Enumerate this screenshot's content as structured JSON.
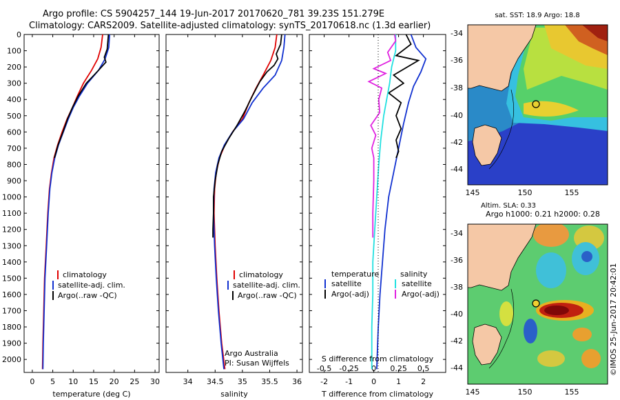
{
  "header": {
    "line1": "Argo profile: CS 5904257_144 19-Jun-2017 20170620_781 39.23S 151.279E",
    "line2": "Climatology: CARS2009. Satellite-adjusted climatology: synTS_20170618.nc (1.3d earlier)"
  },
  "colors": {
    "climatology": "#e00000",
    "satellite": "#1030d0",
    "argo": "#000000",
    "sat_s": "#20e0e0",
    "argo_s": "#e020e0"
  },
  "chart_data": [
    {
      "type": "line",
      "id": "temperature",
      "xlabel": "temperature (deg C)",
      "ylabel": "",
      "xlim": [
        -2,
        31
      ],
      "ylim": [
        2080,
        0
      ],
      "xticks": [
        0,
        5,
        10,
        15,
        20,
        25,
        30
      ],
      "yticks": [
        0,
        100,
        200,
        300,
        400,
        500,
        600,
        700,
        800,
        900,
        1000,
        1100,
        1200,
        1300,
        1400,
        1500,
        1600,
        1700,
        1800,
        1900,
        2000
      ],
      "legend": [
        "climatology",
        "satellite-adj. clim.",
        "Argo(..raw -QC)"
      ],
      "series": [
        {
          "name": "climatology",
          "points": [
            [
              17.2,
              0
            ],
            [
              16.8,
              80
            ],
            [
              16.0,
              150
            ],
            [
              14.5,
              220
            ],
            [
              12.5,
              300
            ],
            [
              11.0,
              380
            ],
            [
              9.8,
              450
            ],
            [
              8.5,
              520
            ],
            [
              7.3,
              600
            ],
            [
              6.2,
              680
            ],
            [
              5.3,
              760
            ],
            [
              4.7,
              850
            ],
            [
              4.2,
              950
            ],
            [
              3.8,
              1100
            ],
            [
              3.4,
              1300
            ],
            [
              3.0,
              1500
            ],
            [
              2.8,
              1700
            ],
            [
              2.6,
              1900
            ],
            [
              2.5,
              2060
            ]
          ]
        },
        {
          "name": "satellite-adj. clim.",
          "points": [
            [
              18.9,
              0
            ],
            [
              18.7,
              80
            ],
            [
              17.8,
              150
            ],
            [
              16.2,
              220
            ],
            [
              13.5,
              300
            ],
            [
              11.5,
              380
            ],
            [
              10.0,
              450
            ],
            [
              8.8,
              520
            ],
            [
              7.6,
              600
            ],
            [
              6.4,
              680
            ],
            [
              5.5,
              760
            ],
            [
              4.8,
              850
            ],
            [
              4.3,
              950
            ],
            [
              3.9,
              1100
            ],
            [
              3.5,
              1300
            ],
            [
              3.1,
              1500
            ],
            [
              2.9,
              1700
            ],
            [
              2.7,
              1900
            ],
            [
              2.6,
              2060
            ]
          ]
        },
        {
          "name": "Argo(..raw -QC)",
          "points": [
            [
              18.6,
              0
            ],
            [
              18.3,
              90
            ],
            [
              17.6,
              140
            ],
            [
              18.0,
              170
            ],
            [
              16.2,
              220
            ],
            [
              13.2,
              300
            ],
            [
              11.2,
              380
            ],
            [
              9.8,
              450
            ],
            [
              8.6,
              520
            ],
            [
              7.5,
              600
            ],
            [
              6.3,
              680
            ],
            [
              5.4,
              760
            ]
          ]
        }
      ]
    },
    {
      "type": "line",
      "id": "salinity",
      "xlabel": "salinity",
      "xlim": [
        33.6,
        36.1
      ],
      "ylim": [
        2080,
        0
      ],
      "xticks": [
        34,
        34.5,
        35,
        35.5,
        36
      ],
      "legend": [
        "climatology",
        "satellite-adj. clim.",
        "Argo(..raw -QC)"
      ],
      "annotation": [
        "Argo Australia",
        "PI: Susan Wijffels"
      ],
      "series": [
        {
          "name": "climatology",
          "points": [
            [
              35.63,
              0
            ],
            [
              35.6,
              80
            ],
            [
              35.52,
              160
            ],
            [
              35.38,
              250
            ],
            [
              35.25,
              330
            ],
            [
              35.12,
              420
            ],
            [
              35.0,
              520
            ],
            [
              34.82,
              600
            ],
            [
              34.68,
              680
            ],
            [
              34.58,
              760
            ],
            [
              34.52,
              850
            ],
            [
              34.49,
              950
            ],
            [
              34.48,
              1100
            ],
            [
              34.5,
              1300
            ],
            [
              34.53,
              1500
            ],
            [
              34.57,
              1700
            ],
            [
              34.62,
              1900
            ],
            [
              34.68,
              2060
            ]
          ]
        },
        {
          "name": "satellite-adj. clim.",
          "points": [
            [
              35.78,
              0
            ],
            [
              35.76,
              80
            ],
            [
              35.72,
              160
            ],
            [
              35.6,
              250
            ],
            [
              35.38,
              330
            ],
            [
              35.18,
              420
            ],
            [
              35.02,
              520
            ],
            [
              34.82,
              600
            ],
            [
              34.67,
              680
            ],
            [
              34.57,
              760
            ],
            [
              34.51,
              850
            ],
            [
              34.48,
              950
            ],
            [
              34.47,
              1100
            ],
            [
              34.49,
              1300
            ],
            [
              34.52,
              1500
            ],
            [
              34.56,
              1700
            ],
            [
              34.61,
              1900
            ],
            [
              34.66,
              2060
            ]
          ]
        },
        {
          "name": "Argo(..raw -QC)",
          "points": [
            [
              35.72,
              0
            ],
            [
              35.7,
              60
            ],
            [
              35.62,
              120
            ],
            [
              35.65,
              150
            ],
            [
              35.58,
              190
            ],
            [
              35.45,
              230
            ],
            [
              35.32,
              290
            ],
            [
              35.18,
              380
            ],
            [
              35.05,
              470
            ],
            [
              34.9,
              560
            ],
            [
              34.75,
              640
            ],
            [
              34.62,
              720
            ],
            [
              34.55,
              800
            ],
            [
              34.5,
              900
            ],
            [
              34.47,
              1000
            ],
            [
              34.47,
              1100
            ],
            [
              34.46,
              1200
            ],
            [
              34.46,
              1250
            ]
          ]
        }
      ]
    },
    {
      "type": "line",
      "id": "difference",
      "xlabel": "T difference from climatology",
      "xlabel_top": "S difference from climatology",
      "xlim": [
        -2.6,
        2.9
      ],
      "ylim": [
        2080,
        0
      ],
      "xticks_t": [
        -2,
        -1,
        0,
        1,
        2
      ],
      "xticks_s": [
        "-0.5",
        "-0.25",
        "0",
        "0.25",
        "0.5"
      ],
      "legend_t_title": "temperature",
      "legend_s_title": "salinity",
      "legend_t": [
        "satellite",
        "Argo(-adj)"
      ],
      "legend_s": [
        "satellite",
        "Argo(-adj)"
      ],
      "series": [
        {
          "name": "T satellite",
          "points": [
            [
              1.5,
              0
            ],
            [
              1.7,
              80
            ],
            [
              2.1,
              150
            ],
            [
              1.9,
              230
            ],
            [
              1.6,
              320
            ],
            [
              1.4,
              420
            ],
            [
              1.2,
              550
            ],
            [
              1.0,
              700
            ],
            [
              0.8,
              850
            ],
            [
              0.6,
              1000
            ],
            [
              0.45,
              1200
            ],
            [
              0.35,
              1400
            ],
            [
              0.25,
              1600
            ],
            [
              0.18,
              1800
            ],
            [
              0.12,
              2060
            ]
          ]
        },
        {
          "name": "T Argo(-adj)",
          "points": [
            [
              1.3,
              0
            ],
            [
              1.5,
              60
            ],
            [
              0.9,
              130
            ],
            [
              1.8,
              160
            ],
            [
              0.8,
              250
            ],
            [
              1.2,
              300
            ],
            [
              0.6,
              360
            ],
            [
              1.1,
              420
            ],
            [
              0.9,
              500
            ],
            [
              1.1,
              580
            ],
            [
              0.9,
              650
            ],
            [
              1.0,
              720
            ],
            [
              0.9,
              760
            ]
          ]
        },
        {
          "name": "S satellite",
          "points": [
            [
              0.22,
              0
            ],
            [
              0.22,
              100
            ],
            [
              0.18,
              200
            ],
            [
              0.16,
              300
            ],
            [
              0.13,
              400
            ],
            [
              0.1,
              500
            ],
            [
              0.07,
              650
            ],
            [
              0.05,
              800
            ],
            [
              0.03,
              1000
            ],
            [
              0.01,
              1200
            ],
            [
              -0.01,
              1400
            ],
            [
              -0.01,
              1600
            ],
            [
              -0.02,
              1800
            ],
            [
              -0.02,
              2060
            ]
          ]
        },
        {
          "name": "S Argo(-adj)",
          "points": [
            [
              0.21,
              0
            ],
            [
              0.22,
              40
            ],
            [
              0.14,
              110
            ],
            [
              0.17,
              160
            ],
            [
              0.0,
              210
            ],
            [
              0.12,
              240
            ],
            [
              -0.05,
              290
            ],
            [
              0.08,
              330
            ],
            [
              0.05,
              400
            ],
            [
              0.06,
              480
            ],
            [
              -0.03,
              560
            ],
            [
              0.02,
              620
            ],
            [
              -0.02,
              700
            ],
            [
              0.0,
              760
            ],
            [
              0.0,
              900
            ],
            [
              -0.01,
              1100
            ],
            [
              -0.01,
              1250
            ]
          ]
        }
      ]
    }
  ],
  "maps": [
    {
      "id": "sst",
      "title": "sat. SST: 18.9 Argo: 18.8",
      "yticks": [
        "-34",
        "-36",
        "-38",
        "-40",
        "-42",
        "-44"
      ],
      "xticks": [
        "145",
        "150",
        "155"
      ]
    },
    {
      "id": "sla",
      "title1": "Altim. SLA: 0.33",
      "title2": "Argo h1000: 0.21 h2000: 0.28",
      "yticks": [
        "-34",
        "-36",
        "-38",
        "-40",
        "-42",
        "-44"
      ],
      "xticks": [
        "145",
        "150",
        "155"
      ],
      "credit": "©IMOS 25-Jun-2017 20:42:01"
    }
  ]
}
